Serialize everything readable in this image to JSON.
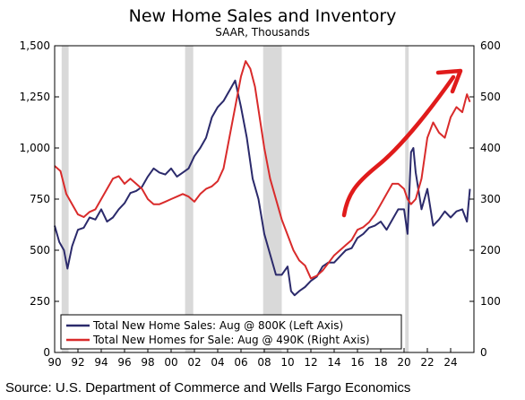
{
  "chart_data": {
    "type": "line",
    "title": "New Home Sales and Inventory",
    "subtitle": "SAAR, Thousands",
    "x_tick_labels": [
      "90",
      "92",
      "94",
      "96",
      "98",
      "00",
      "02",
      "04",
      "06",
      "08",
      "10",
      "12",
      "14",
      "16",
      "18",
      "20",
      "22",
      "24"
    ],
    "x_range": [
      1990,
      2026
    ],
    "ylim_left": [
      0,
      1500
    ],
    "ylim_right": [
      0,
      600
    ],
    "y_left_ticks": [
      "0",
      "250",
      "500",
      "750",
      "1,000",
      "1,250",
      "1,500"
    ],
    "y_right_ticks": [
      "0",
      "100",
      "200",
      "300",
      "400",
      "500",
      "600"
    ],
    "recessions": [
      [
        1990.6,
        1991.2
      ],
      [
        2001.2,
        2001.9
      ],
      [
        2007.9,
        2009.5
      ],
      [
        2020.1,
        2020.4
      ]
    ],
    "series": [
      {
        "name": "Total New Home Sales: Aug @ 800K (Left Axis)",
        "axis": "left",
        "color": "#2b2a6b",
        "x": [
          1990,
          1990.4,
          1990.8,
          1991.1,
          1991.5,
          1992,
          1992.5,
          1993,
          1993.5,
          1994,
          1994.5,
          1995,
          1995.5,
          1996,
          1996.5,
          1997,
          1997.5,
          1998,
          1998.5,
          1999,
          1999.5,
          2000,
          2000.5,
          2001,
          2001.5,
          2002,
          2002.5,
          2003,
          2003.5,
          2004,
          2004.5,
          2005,
          2005.5,
          2006,
          2006.5,
          2007,
          2007.5,
          2008,
          2008.5,
          2009,
          2009.5,
          2010,
          2010.3,
          2010.6,
          2011,
          2011.5,
          2012,
          2012.5,
          2013,
          2013.5,
          2014,
          2014.5,
          2015,
          2015.5,
          2016,
          2016.5,
          2017,
          2017.5,
          2018,
          2018.5,
          2019,
          2019.5,
          2020,
          2020.3,
          2020.6,
          2020.8,
          2021,
          2021.5,
          2022,
          2022.5,
          2023,
          2023.5,
          2024,
          2024.5,
          2025,
          2025.4,
          2025.65
        ],
        "values": [
          620,
          540,
          500,
          410,
          520,
          600,
          610,
          660,
          650,
          700,
          640,
          660,
          700,
          730,
          780,
          790,
          810,
          860,
          900,
          880,
          870,
          900,
          860,
          880,
          900,
          960,
          1000,
          1050,
          1150,
          1200,
          1230,
          1280,
          1330,
          1200,
          1050,
          850,
          750,
          580,
          480,
          380,
          380,
          420,
          300,
          280,
          300,
          320,
          350,
          370,
          420,
          440,
          440,
          470,
          500,
          510,
          560,
          580,
          610,
          620,
          640,
          600,
          650,
          700,
          700,
          580,
          980,
          1000,
          880,
          700,
          800,
          620,
          650,
          690,
          660,
          690,
          700,
          640,
          800
        ]
      },
      {
        "name": "Total New Homes for Sale: Aug @ 490K (Right Axis)",
        "axis": "right",
        "color": "#d92b2b",
        "x": [
          1990,
          1990.5,
          1991,
          1991.5,
          1992,
          1992.5,
          1993,
          1993.5,
          1994,
          1994.5,
          1995,
          1995.5,
          1996,
          1996.5,
          1997,
          1997.5,
          1998,
          1998.5,
          1999,
          1999.5,
          2000,
          2000.5,
          2001,
          2001.5,
          2002,
          2002.5,
          2003,
          2003.5,
          2004,
          2004.5,
          2005,
          2005.5,
          2006,
          2006.4,
          2006.8,
          2007.2,
          2007.6,
          2008,
          2008.5,
          2009,
          2009.5,
          2010,
          2010.5,
          2011,
          2011.5,
          2012,
          2012.5,
          2013,
          2013.5,
          2014,
          2014.5,
          2015,
          2015.5,
          2016,
          2016.5,
          2017,
          2017.5,
          2018,
          2018.5,
          2019,
          2019.5,
          2020,
          2020.3,
          2020.6,
          2021,
          2021.5,
          2022,
          2022.5,
          2023,
          2023.5,
          2024,
          2024.5,
          2025,
          2025.4,
          2025.65
        ],
        "values": [
          365,
          355,
          310,
          290,
          270,
          265,
          275,
          280,
          300,
          320,
          340,
          345,
          330,
          340,
          330,
          320,
          300,
          290,
          290,
          295,
          300,
          305,
          310,
          305,
          295,
          310,
          320,
          325,
          335,
          360,
          420,
          480,
          540,
          570,
          555,
          520,
          460,
          400,
          340,
          300,
          260,
          230,
          200,
          180,
          170,
          145,
          150,
          160,
          175,
          190,
          200,
          210,
          220,
          240,
          245,
          255,
          270,
          290,
          310,
          330,
          330,
          320,
          300,
          290,
          300,
          340,
          420,
          450,
          430,
          420,
          460,
          480,
          470,
          505,
          490
        ]
      }
    ],
    "annotation": "red arrow pointing up-right indicating rising inventory"
  },
  "source": "Source: U.S. Department of Commerce and Wells Fargo Economics"
}
